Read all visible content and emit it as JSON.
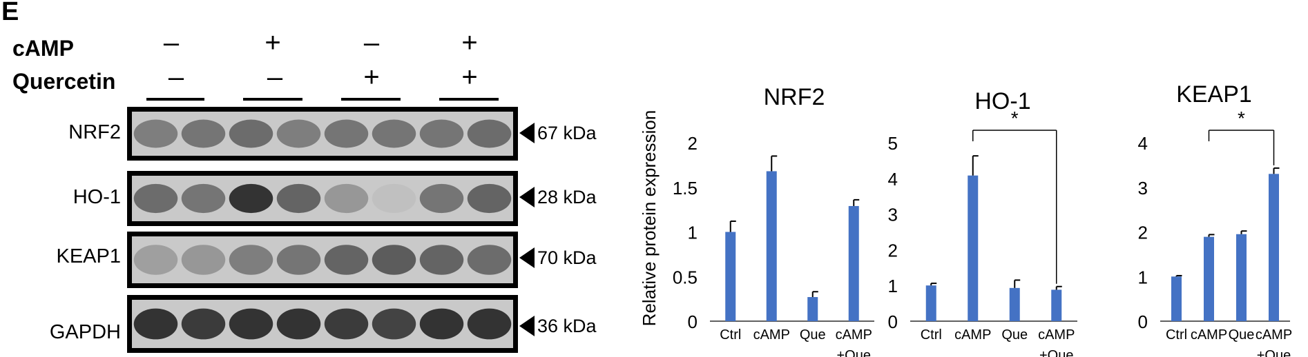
{
  "panel_label": "E",
  "conditions": {
    "rows": [
      {
        "label": "cAMP",
        "signs": [
          "–",
          "+",
          "–",
          "+"
        ]
      },
      {
        "label": "Quercetin",
        "signs": [
          "–",
          "–",
          "+",
          "+"
        ]
      }
    ]
  },
  "blots": [
    {
      "protein": "NRF2",
      "size": "67 kDa",
      "lane_intensity": [
        0.45,
        0.5,
        0.55,
        0.45,
        0.5,
        0.5,
        0.5,
        0.55
      ]
    },
    {
      "protein": "HO-1",
      "size": "28 kDa",
      "lane_intensity": [
        0.55,
        0.5,
        0.9,
        0.6,
        0.3,
        0.05,
        0.5,
        0.6
      ]
    },
    {
      "protein": "KEAP1",
      "size": "70 kDa",
      "lane_intensity": [
        0.25,
        0.3,
        0.45,
        0.5,
        0.6,
        0.65,
        0.6,
        0.55
      ]
    },
    {
      "protein": "GAPDH",
      "size": "36 kDa",
      "lane_intensity": [
        0.9,
        0.85,
        0.9,
        0.9,
        0.85,
        0.8,
        0.9,
        0.9
      ]
    }
  ],
  "colors": {
    "bar": "#4472C4",
    "blot_bg": "#c9c9c9"
  },
  "chart_data": [
    {
      "type": "bar",
      "title": "NRF2",
      "ylabel": "Relative protein expression",
      "categories": [
        "Ctrl",
        "cAMP",
        "Que",
        "cAMP\n+Que"
      ],
      "values": [
        1.0,
        1.68,
        0.27,
        1.29
      ],
      "errors": [
        0.12,
        0.17,
        0.06,
        0.07
      ],
      "ylim": [
        0,
        2
      ],
      "yticks": [
        "0",
        "0.5",
        "1",
        "1.5",
        "2"
      ],
      "ytick_values": [
        0,
        0.5,
        1,
        1.5,
        2
      ],
      "significance": null
    },
    {
      "type": "bar",
      "title": "HO-1",
      "ylabel": "",
      "categories": [
        "Ctrl",
        "cAMP",
        "Que",
        "cAMP\n+Que"
      ],
      "values": [
        1.0,
        4.08,
        0.93,
        0.88
      ],
      "errors": [
        0.06,
        0.55,
        0.22,
        0.09
      ],
      "ylim": [
        0,
        5
      ],
      "yticks": [
        "0",
        "1",
        "2",
        "3",
        "4",
        "5"
      ],
      "ytick_values": [
        0,
        1,
        2,
        3,
        4,
        5
      ],
      "significance": {
        "from": 1,
        "to": 3,
        "label": "*"
      }
    },
    {
      "type": "bar",
      "title": "KEAP1",
      "ylabel": "",
      "categories": [
        "Ctrl",
        "cAMP",
        "Que",
        "cAMP\n+Que"
      ],
      "values": [
        1.0,
        1.89,
        1.95,
        3.3
      ],
      "errors": [
        0.02,
        0.05,
        0.07,
        0.13
      ],
      "ylim": [
        0,
        4
      ],
      "yticks": [
        "0",
        "1",
        "2",
        "3",
        "4"
      ],
      "ytick_values": [
        0,
        1,
        2,
        3,
        4
      ],
      "significance": {
        "from": 1,
        "to": 3,
        "label": "*"
      }
    }
  ]
}
